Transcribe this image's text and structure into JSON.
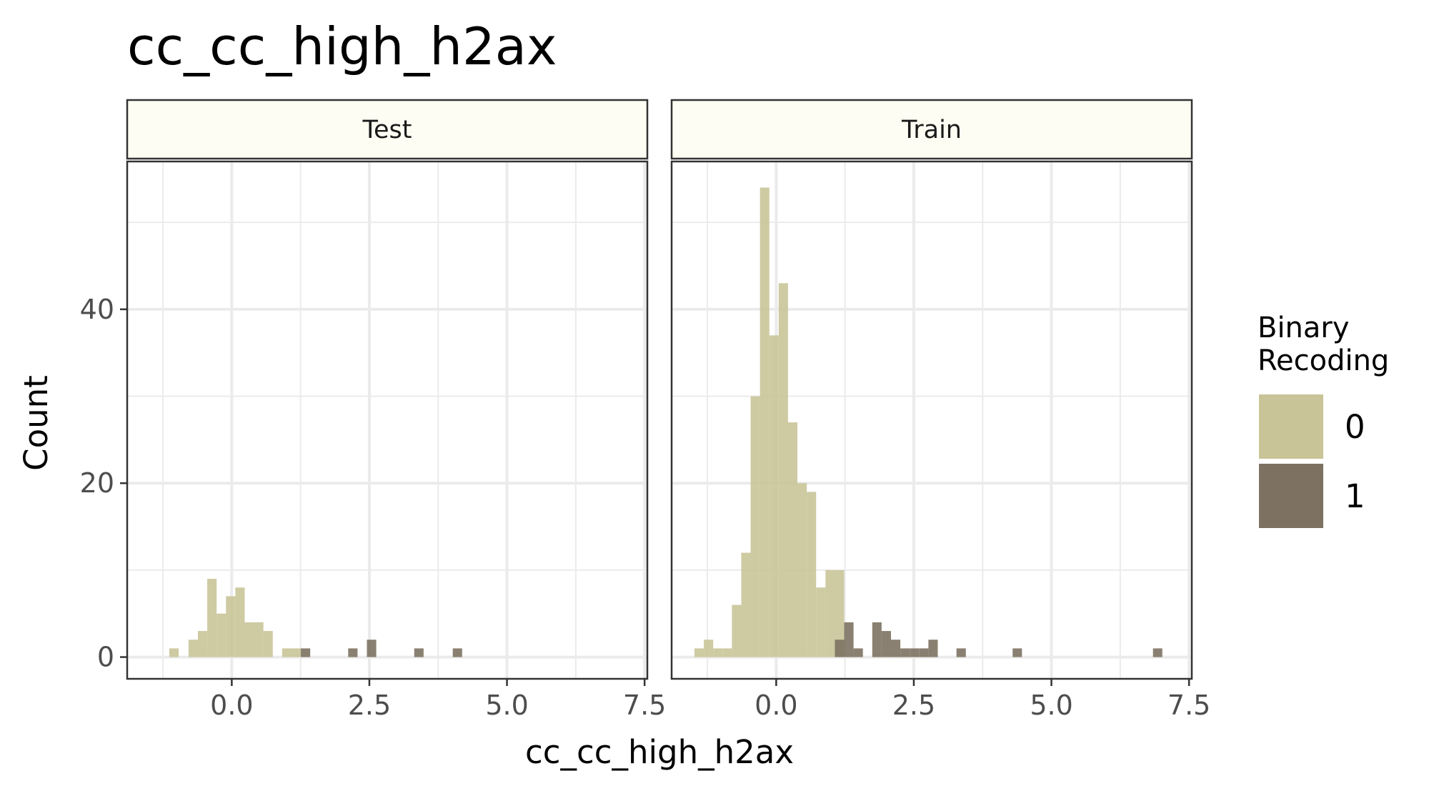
{
  "chart_data": {
    "type": "bar",
    "title": "cc_cc_high_h2ax",
    "xlabel": "cc_cc_high_h2ax",
    "ylabel": "Count",
    "xlim": [
      -1.9,
      7.55
    ],
    "ylim": [
      -2.5,
      57
    ],
    "x_ticks": [
      0.0,
      2.5,
      5.0,
      7.5
    ],
    "x_tick_labels": [
      "0.0",
      "2.5",
      "5.0",
      "7.5"
    ],
    "y_ticks": [
      0,
      20,
      40
    ],
    "y_tick_labels": [
      "0",
      "20",
      "40"
    ],
    "bin_width": 0.17,
    "grid": true,
    "legend": {
      "title": "Binary\nRecoding",
      "position": "right",
      "entries": [
        {
          "label": "0",
          "color": "#c9c498"
        },
        {
          "label": "1",
          "color": "#7d7262"
        }
      ]
    },
    "series_colors": {
      "0": "#c9c498",
      "1": "#7d7262"
    },
    "panels": [
      {
        "name": "Test",
        "bars": [
          {
            "x": -1.05,
            "y": 1,
            "group": "0"
          },
          {
            "x": -0.7,
            "y": 2,
            "group": "0"
          },
          {
            "x": -0.53,
            "y": 3,
            "group": "0"
          },
          {
            "x": -0.36,
            "y": 9,
            "group": "0"
          },
          {
            "x": -0.19,
            "y": 5,
            "group": "0"
          },
          {
            "x": -0.02,
            "y": 7,
            "group": "0"
          },
          {
            "x": 0.15,
            "y": 8,
            "group": "0"
          },
          {
            "x": 0.32,
            "y": 4,
            "group": "0"
          },
          {
            "x": 0.49,
            "y": 4,
            "group": "0"
          },
          {
            "x": 0.66,
            "y": 3,
            "group": "0"
          },
          {
            "x": 1.0,
            "y": 1,
            "group": "0"
          },
          {
            "x": 1.17,
            "y": 1,
            "group": "0"
          },
          {
            "x": 1.34,
            "y": 1,
            "group": "1"
          },
          {
            "x": 2.2,
            "y": 1,
            "group": "1"
          },
          {
            "x": 2.54,
            "y": 2,
            "group": "1"
          },
          {
            "x": 3.4,
            "y": 1,
            "group": "1"
          },
          {
            "x": 4.1,
            "y": 1,
            "group": "1"
          }
        ]
      },
      {
        "name": "Train",
        "bars": [
          {
            "x": -1.4,
            "y": 1,
            "group": "0"
          },
          {
            "x": -1.23,
            "y": 2,
            "group": "0"
          },
          {
            "x": -1.06,
            "y": 1,
            "group": "0"
          },
          {
            "x": -0.89,
            "y": 1,
            "group": "0"
          },
          {
            "x": -0.72,
            "y": 6,
            "group": "0"
          },
          {
            "x": -0.55,
            "y": 12,
            "group": "0"
          },
          {
            "x": -0.38,
            "y": 30,
            "group": "0"
          },
          {
            "x": -0.21,
            "y": 54,
            "group": "0"
          },
          {
            "x": -0.04,
            "y": 37,
            "group": "0"
          },
          {
            "x": 0.13,
            "y": 43,
            "group": "0"
          },
          {
            "x": 0.3,
            "y": 27,
            "group": "0"
          },
          {
            "x": 0.47,
            "y": 20,
            "group": "0"
          },
          {
            "x": 0.64,
            "y": 19,
            "group": "0"
          },
          {
            "x": 0.81,
            "y": 8,
            "group": "0"
          },
          {
            "x": 0.98,
            "y": 10,
            "group": "0"
          },
          {
            "x": 1.15,
            "y": 10,
            "group": "0"
          },
          {
            "x": 1.15,
            "y": 2,
            "group": "1"
          },
          {
            "x": 1.32,
            "y": 4,
            "group": "1"
          },
          {
            "x": 1.49,
            "y": 1,
            "group": "1"
          },
          {
            "x": 1.83,
            "y": 4,
            "group": "1"
          },
          {
            "x": 2.0,
            "y": 3,
            "group": "1"
          },
          {
            "x": 2.17,
            "y": 2,
            "group": "1"
          },
          {
            "x": 2.34,
            "y": 1,
            "group": "1"
          },
          {
            "x": 2.51,
            "y": 1,
            "group": "1"
          },
          {
            "x": 2.68,
            "y": 1,
            "group": "1"
          },
          {
            "x": 2.85,
            "y": 2,
            "group": "1"
          },
          {
            "x": 3.36,
            "y": 1,
            "group": "1"
          },
          {
            "x": 4.38,
            "y": 1,
            "group": "1"
          },
          {
            "x": 6.93,
            "y": 1,
            "group": "1"
          }
        ]
      }
    ]
  }
}
